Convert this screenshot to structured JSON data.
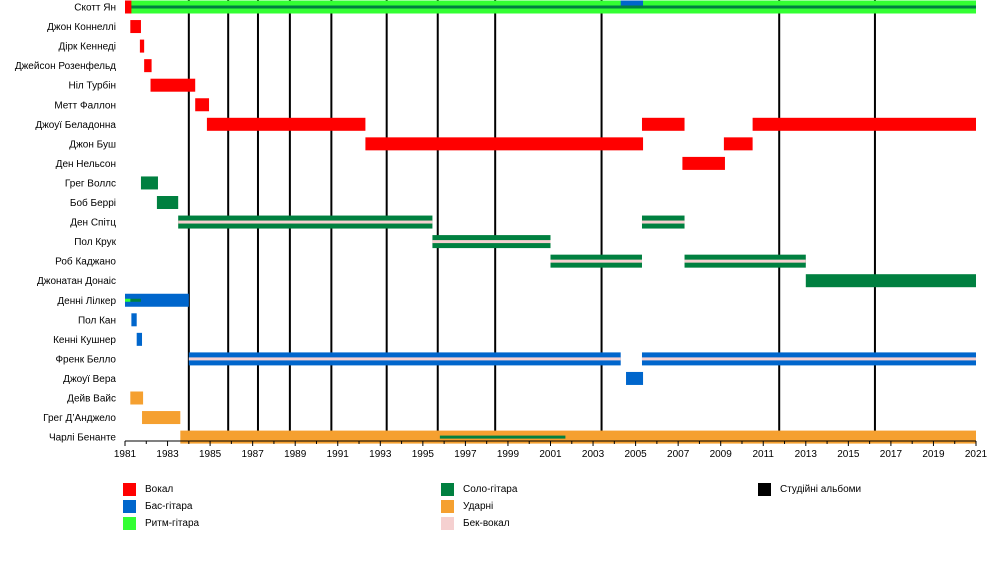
{
  "chart_data": {
    "type": "timeline",
    "x_range": [
      1981,
      2021
    ],
    "x_ticks": [
      "1981",
      "1983",
      "1985",
      "1987",
      "1989",
      "1991",
      "1993",
      "1995",
      "1997",
      "1999",
      "2001",
      "2003",
      "2005",
      "2007",
      "2009",
      "2011",
      "2013",
      "2015",
      "2017",
      "2019",
      "2021"
    ],
    "colors": {
      "vocals": "#ff0000",
      "bass": "#0066cc",
      "rhythm": "#33ff33",
      "lead": "#008040",
      "drums": "#f5a030",
      "backing": "#f5d0d0",
      "albums": "#000000"
    },
    "albums": [
      1984.0,
      1985.85,
      1987.25,
      1988.75,
      1990.7,
      1993.3,
      1995.7,
      1998.4,
      2003.4,
      2011.75,
      2016.25
    ],
    "members": [
      {
        "name": "Скотт Ян",
        "segments": [
          {
            "role": "rhythm",
            "start": 1981.0,
            "end": 2021.0
          },
          {
            "role": "vocals",
            "start": 1981.0,
            "end": 1981.3
          },
          {
            "role": "bass",
            "start": 2004.3,
            "end": 2005.35
          }
        ]
      },
      {
        "name": "Джон Коннеллі",
        "segments": [
          {
            "role": "vocals",
            "start": 1981.25,
            "end": 1981.75
          }
        ]
      },
      {
        "name": "Дірк Кеннеді",
        "segments": [
          {
            "role": "vocals",
            "start": 1981.7,
            "end": 1981.9
          }
        ]
      },
      {
        "name": "Джейсон Розенфельд",
        "segments": [
          {
            "role": "vocals",
            "start": 1981.9,
            "end": 1982.25
          }
        ]
      },
      {
        "name": "Ніл Турбін",
        "segments": [
          {
            "role": "vocals",
            "start": 1982.2,
            "end": 1984.3
          }
        ]
      },
      {
        "name": "Метт Фаллон",
        "segments": [
          {
            "role": "vocals",
            "start": 1984.3,
            "end": 1984.95
          }
        ]
      },
      {
        "name": "Джоуї Беладонна",
        "segments": [
          {
            "role": "vocals",
            "start": 1984.85,
            "end": 1992.3
          },
          {
            "role": "vocals",
            "start": 2005.3,
            "end": 2007.3
          },
          {
            "role": "vocals",
            "start": 2010.5,
            "end": 2021.0
          }
        ]
      },
      {
        "name": "Джон Буш",
        "segments": [
          {
            "role": "vocals",
            "start": 1992.3,
            "end": 2005.35
          },
          {
            "role": "vocals",
            "start": 2009.15,
            "end": 2010.5
          }
        ]
      },
      {
        "name": "Ден Нельсон",
        "segments": [
          {
            "role": "vocals",
            "start": 2007.2,
            "end": 2009.2
          }
        ]
      },
      {
        "name": "Грег Воллс",
        "segments": [
          {
            "role": "lead",
            "start": 1981.75,
            "end": 1982.55
          }
        ]
      },
      {
        "name": "Боб Беррі",
        "segments": [
          {
            "role": "lead",
            "start": 1982.5,
            "end": 1983.5
          }
        ]
      },
      {
        "name": "Ден Спітц",
        "segments": [
          {
            "role": "lead",
            "start": 1983.5,
            "end": 1995.45,
            "backing": true
          },
          {
            "role": "lead",
            "start": 2005.3,
            "end": 2007.3,
            "backing": true
          }
        ]
      },
      {
        "name": "Пол Крук",
        "segments": [
          {
            "role": "lead",
            "start": 1995.45,
            "end": 2001.0,
            "backing": true
          }
        ]
      },
      {
        "name": "Роб Каджано",
        "segments": [
          {
            "role": "lead",
            "start": 2001.0,
            "end": 2005.3,
            "backing": true
          },
          {
            "role": "lead",
            "start": 2007.3,
            "end": 2013.0,
            "backing": true
          }
        ]
      },
      {
        "name": "Джонатан Донаіс",
        "segments": [
          {
            "role": "lead",
            "start": 2013.0,
            "end": 2021.0
          }
        ]
      },
      {
        "name": "Денні Лілкер",
        "segments": [
          {
            "role": "bass",
            "start": 1981.0,
            "end": 1984.0
          },
          {
            "role": "lead",
            "start": 1981.25,
            "end": 1981.75
          },
          {
            "role": "rhythm",
            "start": 1981.0,
            "end": 1981.25
          }
        ]
      },
      {
        "name": "Пол Кан",
        "segments": [
          {
            "role": "bass",
            "start": 1981.3,
            "end": 1981.55
          }
        ]
      },
      {
        "name": "Кенні Кушнер",
        "segments": [
          {
            "role": "bass",
            "start": 1981.55,
            "end": 1981.8
          }
        ]
      },
      {
        "name": "Френк Белло",
        "segments": [
          {
            "role": "bass",
            "start": 1984.0,
            "end": 2004.3,
            "backing": true
          },
          {
            "role": "bass",
            "start": 2005.3,
            "end": 2021.0,
            "backing": true
          }
        ]
      },
      {
        "name": "Джоуї Вера",
        "segments": [
          {
            "role": "bass",
            "start": 2004.55,
            "end": 2005.35
          }
        ]
      },
      {
        "name": "Дейв Вайс",
        "segments": [
          {
            "role": "drums",
            "start": 1981.25,
            "end": 1981.85
          }
        ]
      },
      {
        "name": "Грег Д’Анджело",
        "segments": [
          {
            "role": "drums",
            "start": 1981.8,
            "end": 1983.6
          }
        ]
      },
      {
        "name": "Чарлі Бенанте",
        "segments": [
          {
            "role": "drums",
            "start": 1983.6,
            "end": 2021.0
          },
          {
            "role": "lead",
            "start": 1995.8,
            "end": 2001.7
          }
        ]
      }
    ],
    "legend": [
      {
        "label": "Вокал",
        "role": "vocals"
      },
      {
        "label": "Бас-гітара",
        "role": "bass"
      },
      {
        "label": "Ритм-гітара",
        "role": "rhythm"
      },
      {
        "label": "Соло-гітара",
        "role": "lead"
      },
      {
        "label": "Ударні",
        "role": "drums"
      },
      {
        "label": "Бек-вокал",
        "role": "backing"
      },
      {
        "label": "Студійні альбоми",
        "role": "albums"
      }
    ]
  }
}
